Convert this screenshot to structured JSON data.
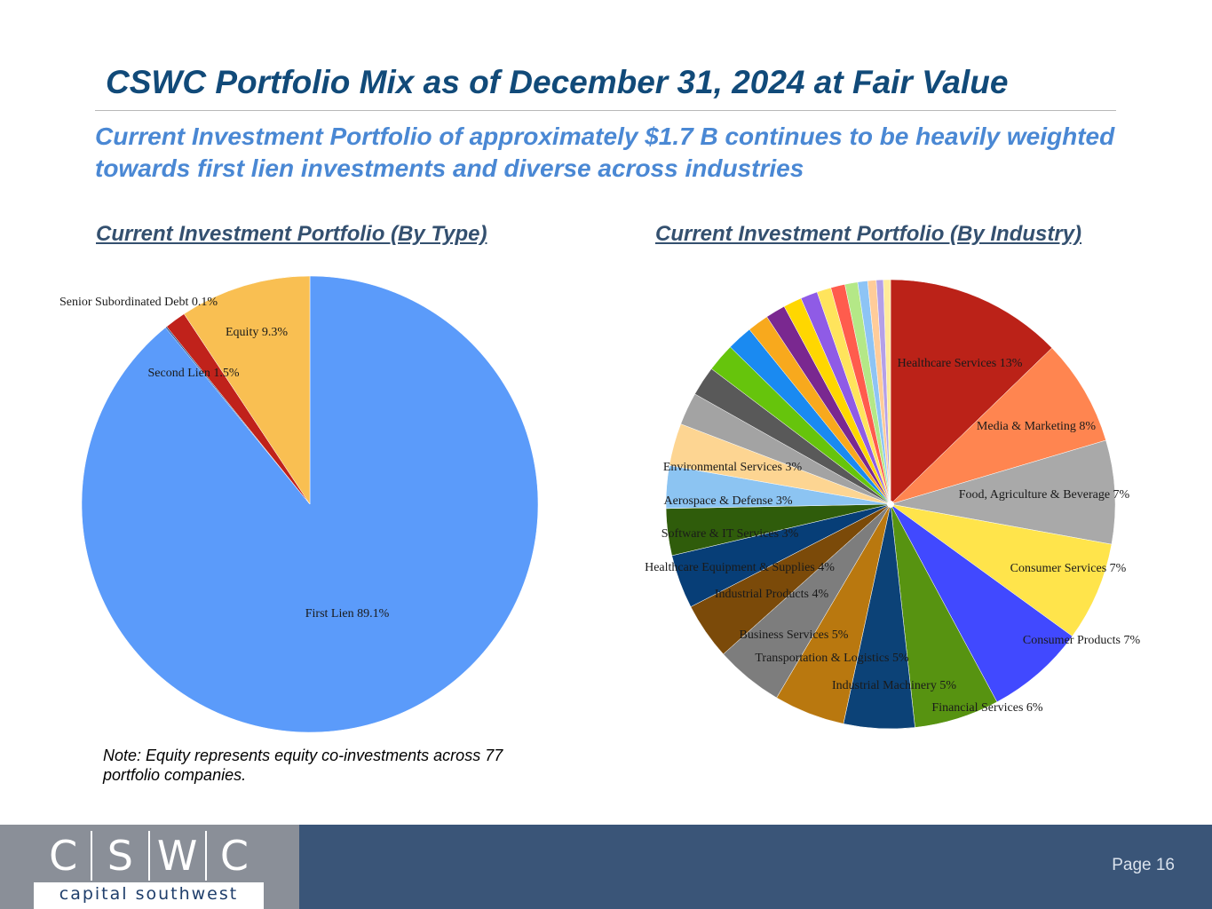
{
  "header": {
    "title": "CSWC Portfolio Mix as of December 31, 2024 at Fair Value",
    "subtitle": "Current Investment Portfolio of approximately $1.7 B continues to be heavily weighted towards first lien investments and diverse across industries"
  },
  "charts": {
    "type_title": "Current Investment Portfolio (By Type)",
    "industry_title": "Current Investment Portfolio (By Industry)"
  },
  "note": "Note: Equity represents equity co-investments across 77 portfolio companies.",
  "footer": {
    "logo_letters": [
      "C",
      "S",
      "W",
      "C"
    ],
    "logo_tagline": "capital southwest",
    "page": "Page 16"
  },
  "chart_data": [
    {
      "type": "pie",
      "title": "Current Investment Portfolio (By Type)",
      "slices": [
        {
          "label": "First Lien 89.1%",
          "value": 89.1,
          "color": "#5b9bfa"
        },
        {
          "label": "Senior Subordinated Debt 0.1%",
          "value": 0.1,
          "color": "#1f4e8c"
        },
        {
          "label": "Second Lien 1.5%",
          "value": 1.5,
          "color": "#c0221b"
        },
        {
          "label": "Equity 9.3%",
          "value": 9.3,
          "color": "#f9bf52"
        }
      ]
    },
    {
      "type": "pie",
      "title": "Current Investment Portfolio (By Industry)",
      "slices": [
        {
          "label": "Healthcare Services 13%",
          "value": 12.5,
          "color": "#bb2218"
        },
        {
          "label": "Media & Marketing 8%",
          "value": 7.5,
          "color": "#ff8550"
        },
        {
          "label": "Food, Agriculture & Beverage 7%",
          "value": 7.3,
          "color": "#a9a9a9"
        },
        {
          "label": "Consumer Services 7%",
          "value": 7.0,
          "color": "#ffe44b"
        },
        {
          "label": "Consumer Products 7%",
          "value": 7.0,
          "color": "#4149ff"
        },
        {
          "label": "Financial Services 6%",
          "value": 6.0,
          "color": "#579311"
        },
        {
          "label": "Industrial Machinery 5%",
          "value": 5.0,
          "color": "#0c4277"
        },
        {
          "label": "Transportation & Logistics 5%",
          "value": 5.0,
          "color": "#b9780f"
        },
        {
          "label": "Business Services 5%",
          "value": 4.8,
          "color": "#7d7d7d"
        },
        {
          "label": "Industrial Products 4%",
          "value": 4.0,
          "color": "#7b4a09"
        },
        {
          "label": "Healthcare Equipment & Supplies 4%",
          "value": 3.8,
          "color": "#073e77"
        },
        {
          "label": "Software & IT Services 3%",
          "value": 3.3,
          "color": "#2f5c0b"
        },
        {
          "label": "Aerospace & Defense 3%",
          "value": 3.0,
          "color": "#8cc4f2"
        },
        {
          "label": "Environmental Services 3%",
          "value": 3.0,
          "color": "#fdd592"
        },
        {
          "label": "",
          "value": 2.3,
          "color": "#a3a3a3"
        },
        {
          "label": "",
          "value": 2.1,
          "color": "#595959"
        },
        {
          "label": "",
          "value": 2.0,
          "color": "#66c40c"
        },
        {
          "label": "",
          "value": 1.8,
          "color": "#1a8af1"
        },
        {
          "label": "",
          "value": 1.5,
          "color": "#f8a91d"
        },
        {
          "label": "",
          "value": 1.4,
          "color": "#7a2890"
        },
        {
          "label": "",
          "value": 1.3,
          "color": "#ffd700"
        },
        {
          "label": "",
          "value": 1.2,
          "color": "#8f5be6"
        },
        {
          "label": "",
          "value": 1.0,
          "color": "#ffe45c"
        },
        {
          "label": "",
          "value": 1.0,
          "color": "#ff5c4d"
        },
        {
          "label": "",
          "value": 0.9,
          "color": "#b4e887"
        },
        {
          "label": "",
          "value": 0.7,
          "color": "#8dc4f5"
        },
        {
          "label": "",
          "value": 0.6,
          "color": "#ffcc99"
        },
        {
          "label": "",
          "value": 0.5,
          "color": "#b4a0e8"
        },
        {
          "label": "",
          "value": 0.5,
          "color": "#ffeb9a"
        }
      ]
    }
  ]
}
